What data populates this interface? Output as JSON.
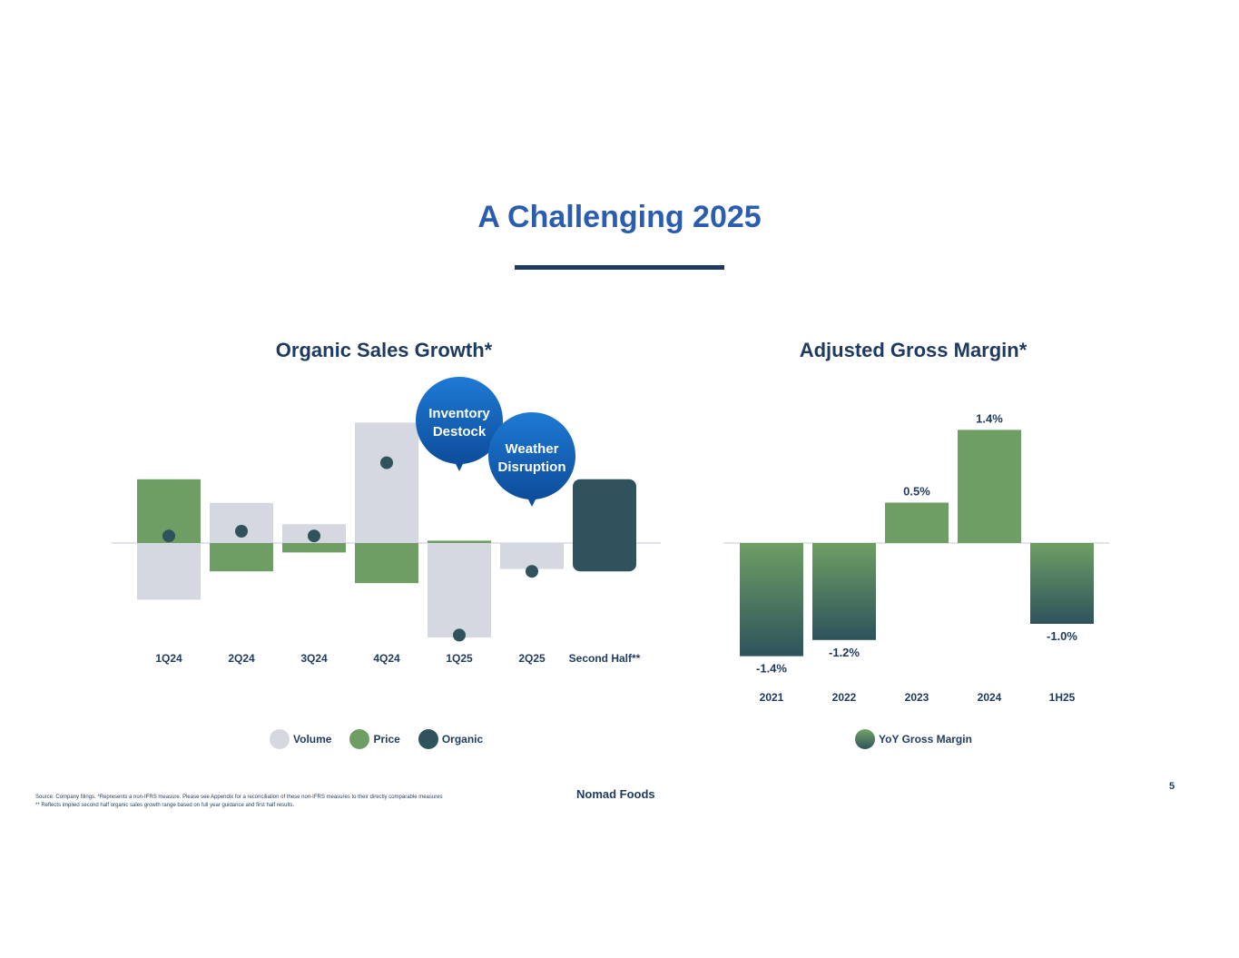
{
  "page": {
    "title": "A Challenging 2025",
    "page_number": "5",
    "brand": "Nomad Foods",
    "footnote_1": "Source: Company filings. *Represents a non-IFRS measure. Please see Appendix for a reconciliation of these non-IFRS measures to their directly comparable measures",
    "footnote_2": "** Reflects implied second half organic sales growth range based on full year guidance and first half results."
  },
  "colors": {
    "volume": "#d5d8e0",
    "price": "#6f9e64",
    "organic": "#2f525c",
    "accent": "#2a5db0",
    "navy": "#1f3a5f",
    "bubble": "#1565c0"
  },
  "chart_data": [
    {
      "type": "bar",
      "title": "Organic Sales Growth*",
      "categories": [
        "1Q24",
        "2Q24",
        "3Q24",
        "4Q24",
        "1Q25",
        "2Q25",
        "Second Half**"
      ],
      "series": [
        {
          "name": "Volume",
          "values": [
            -2.4,
            1.7,
            0.8,
            5.1,
            -4.0,
            -1.1,
            null
          ]
        },
        {
          "name": "Price",
          "values": [
            2.7,
            -1.2,
            -0.4,
            -1.7,
            0.1,
            0.0,
            null
          ]
        },
        {
          "name": "Organic",
          "values": [
            0.3,
            0.5,
            0.3,
            3.4,
            -3.9,
            -1.2,
            null
          ]
        }
      ],
      "range_bar": {
        "category": "Second Half**",
        "low": -1.2,
        "high": 2.7
      },
      "annotations": [
        {
          "text_line1": "Inventory",
          "text_line2": "Destock",
          "category": "1Q25"
        },
        {
          "text_line1": "Weather",
          "text_line2": "Disruption",
          "category": "2Q25"
        }
      ],
      "legend": [
        "Volume",
        "Price",
        "Organic"
      ],
      "legend_position": "bottom",
      "ylim": [
        -4.3,
        5.4
      ],
      "grid": false
    },
    {
      "type": "bar",
      "title": "Adjusted Gross Margin*",
      "categories": [
        "2021",
        "2022",
        "2023",
        "2024",
        "1H25"
      ],
      "values": [
        -1.4,
        -1.2,
        0.5,
        1.4,
        -1.0
      ],
      "labels": [
        "-1.4%",
        "-1.2%",
        "0.5%",
        "1.4%",
        "-1.0%"
      ],
      "series_name": "YoY Gross Margin",
      "legend_position": "bottom",
      "ylim": [
        -1.5,
        1.6
      ],
      "grid": false
    }
  ]
}
